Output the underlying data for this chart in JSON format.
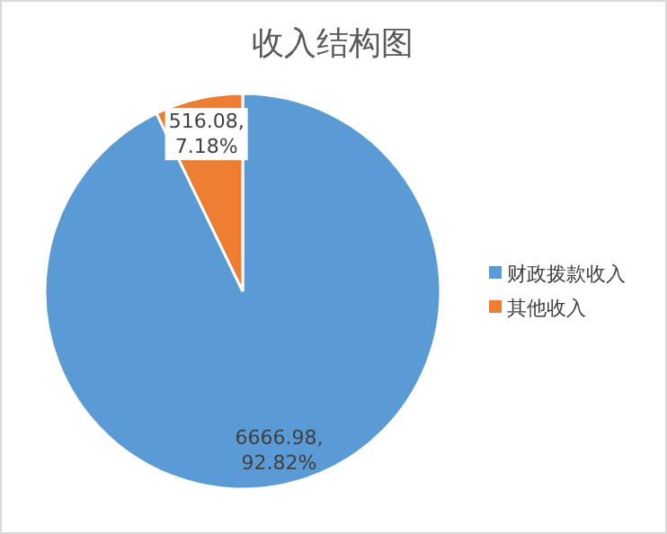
{
  "chart_data": {
    "type": "pie",
    "title": "收入结构图",
    "categories": [
      "财政拨款收入",
      "其他收入"
    ],
    "values": [
      6666.98,
      516.08
    ],
    "colors": [
      "#5b9bd5",
      "#ed7d31"
    ],
    "value_labels": [
      "6666.98,\n92.82%",
      "516.08,\n7.18%"
    ],
    "legend": "right"
  }
}
